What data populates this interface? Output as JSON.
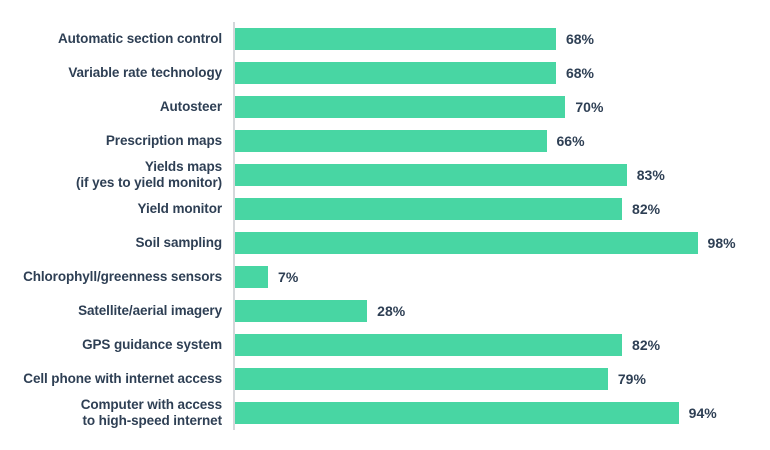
{
  "chart_data": {
    "type": "bar",
    "orientation": "horizontal",
    "title": "",
    "xlabel": "",
    "ylabel": "",
    "xlim": [
      0,
      100
    ],
    "grid": false,
    "legend": false,
    "bar_color": "#48d6a3",
    "label_color": "#2e3f54",
    "axis_line_color": "#d4d7da",
    "categories": [
      "Automatic section control",
      "Variable rate technology",
      "Autosteer",
      "Prescription maps",
      "Yields maps\n(if yes to yield monitor)",
      "Yield monitor",
      "Soil sampling",
      "Chlorophyll/greenness sensors",
      "Satellite/aerial imagery",
      "GPS guidance system",
      "Cell phone with internet access",
      "Computer with access\nto high-speed internet"
    ],
    "values": [
      68,
      68,
      70,
      66,
      83,
      82,
      98,
      7,
      28,
      82,
      79,
      94
    ],
    "value_labels": [
      "68%",
      "68%",
      "70%",
      "66%",
      "83%",
      "82%",
      "98%",
      "7%",
      "28%",
      "82%",
      "79%",
      "94%"
    ]
  }
}
